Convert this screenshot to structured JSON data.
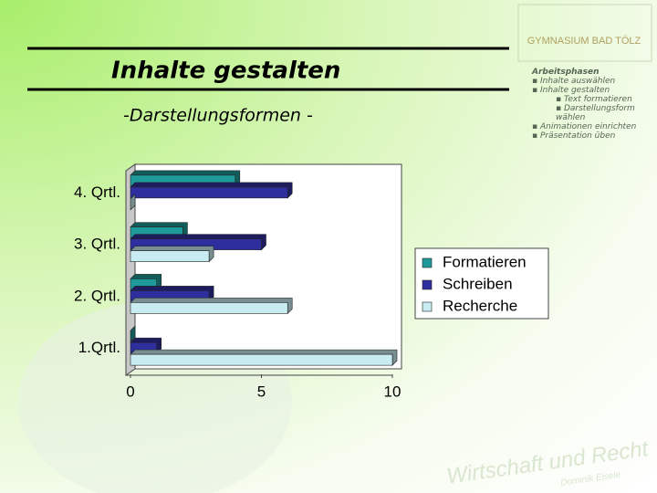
{
  "slide": {
    "title": "Inhalte gestalten",
    "subtitle": "-Darstellungsformen -",
    "logo": "GYMNASIUM BAD TÖLZ",
    "watermark": "Wirtschaft und Recht",
    "author": "Dominik Eisele",
    "sidebar": {
      "heading": "Arbeitsphasen",
      "items": [
        "Inhalte auswählen",
        "Inhalte gestalten",
        "Animationen einrichten",
        "Präsentation üben"
      ],
      "subitems": [
        "Text formatieren",
        "Darstellungsform wählen"
      ]
    }
  },
  "chart_data": {
    "type": "hbar",
    "categories": [
      "1.Qrtl.",
      "2. Qrtl.",
      "3. Qrtl.",
      "4. Qrtl."
    ],
    "series": [
      {
        "name": "Formatieren",
        "color": "#1f9a9a",
        "values": [
          0,
          1,
          2,
          4
        ]
      },
      {
        "name": "Schreiben",
        "color": "#2e2e9e",
        "values": [
          1,
          3,
          5,
          6
        ]
      },
      {
        "name": "Recherche",
        "color": "#c8ecf2",
        "values": [
          10,
          6,
          3,
          0
        ]
      }
    ],
    "xlim": [
      0,
      10
    ],
    "xticks": [
      0,
      5,
      10
    ],
    "grid": false,
    "legend": "right"
  }
}
